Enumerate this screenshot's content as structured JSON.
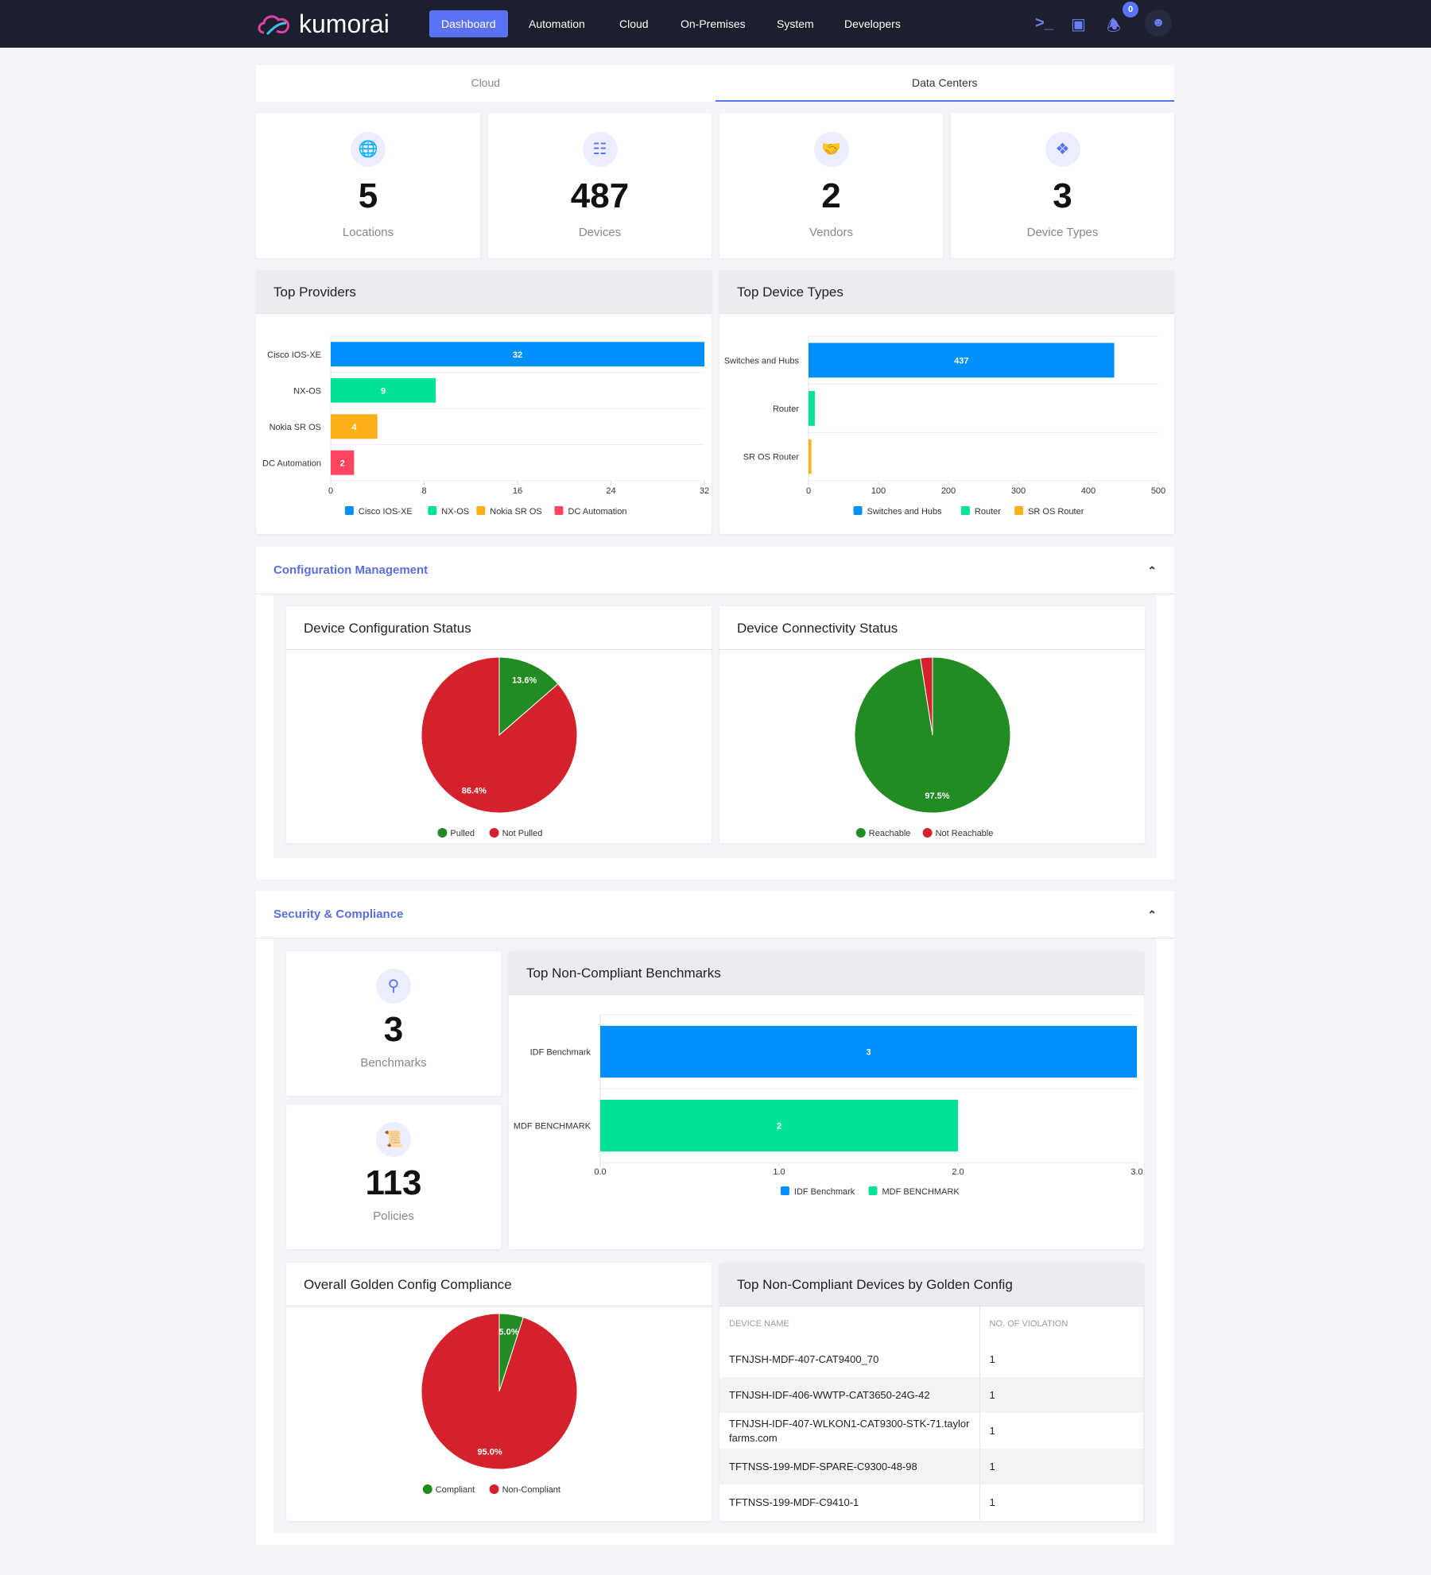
{
  "nav": {
    "brand": "kumorai",
    "items": [
      "Dashboard",
      "Automation",
      "Cloud",
      "On-Premises",
      "System",
      "Developers"
    ],
    "active": "Dashboard",
    "notification_count": "0"
  },
  "tabs": [
    "Cloud",
    "Data Centers"
  ],
  "stats": [
    {
      "value": "5",
      "label": "Locations",
      "icon": "globe-icon"
    },
    {
      "value": "487",
      "label": "Devices",
      "icon": "sitemap-icon"
    },
    {
      "value": "2",
      "label": "Vendors",
      "icon": "handshake-icon"
    },
    {
      "value": "3",
      "label": "Device Types",
      "icon": "cubes-icon"
    }
  ],
  "panels": {
    "top_providers": "Top Providers",
    "top_device_types": "Top Device Types"
  },
  "config": {
    "title": "Configuration Management",
    "config_status": "Device Configuration Status",
    "connectivity_status": "Device Connectivity Status"
  },
  "security": {
    "title": "Security & Compliance",
    "benchmarks": {
      "value": "3",
      "label": "Benchmarks"
    },
    "policies": {
      "value": "113",
      "label": "Policies"
    },
    "benchmarks_chart_title": "Top Non-Compliant Benchmarks",
    "golden_title": "Overall Golden Config Compliance",
    "table_title": "Top Non-Compliant Devices by Golden Config",
    "table": {
      "headers": [
        "DEVICE NAME",
        "NO. OF VIOLATION"
      ],
      "rows": [
        [
          "TFNJSH-MDF-407-CAT9400_70",
          "1"
        ],
        [
          "TFNJSH-IDF-406-WWTP-CAT3650-24G-42",
          "1"
        ],
        [
          "TFNJSH-IDF-407-WLKON1-CAT9300-STK-71.taylorfarms.com",
          "1"
        ],
        [
          "TFTNSS-199-MDF-SPARE-C9300-48-98",
          "1"
        ],
        [
          "TFTNSS-199-MDF-C9410-1",
          "1"
        ]
      ]
    }
  },
  "chart_data": [
    {
      "id": "providers",
      "type": "bar",
      "orientation": "horizontal",
      "categories": [
        "Cisco IOS-XE",
        "NX-OS",
        "Nokia SR OS",
        "DC Automation"
      ],
      "values": [
        32,
        9,
        4,
        2
      ],
      "colors": [
        "#008ffb",
        "#00e396",
        "#feb019",
        "#ff4560"
      ],
      "xlim": [
        0,
        32
      ],
      "ticks": [
        "0",
        "8",
        "16",
        "24",
        "32"
      ],
      "legend": [
        "Cisco IOS-XE",
        "NX-OS",
        "Nokia SR OS",
        "DC Automation"
      ]
    },
    {
      "id": "devtypes",
      "type": "bar",
      "orientation": "horizontal",
      "categories": [
        "Switches and Hubs",
        "Router",
        "SR OS Router"
      ],
      "values": [
        437,
        9,
        4
      ],
      "colors": [
        "#008ffb",
        "#00e396",
        "#feb019"
      ],
      "xlim": [
        0,
        500
      ],
      "ticks": [
        "0",
        "100",
        "200",
        "300",
        "400",
        "500"
      ],
      "legend": [
        "Switches and Hubs",
        "Router",
        "SR OS Router"
      ]
    },
    {
      "id": "benchmarks",
      "type": "bar",
      "orientation": "horizontal",
      "categories": [
        "IDF Benchmark",
        "MDF BENCHMARK"
      ],
      "values": [
        3,
        2
      ],
      "colors": [
        "#008ffb",
        "#00e396"
      ],
      "xlim": [
        0,
        3
      ],
      "ticks": [
        "0.0",
        "1.0",
        "2.0",
        "3.0"
      ],
      "legend": [
        "IDF Benchmark",
        "MDF BENCHMARK"
      ]
    },
    {
      "id": "cfgpie",
      "type": "pie",
      "labels": [
        "Pulled",
        "Not Pulled"
      ],
      "values": [
        13.6,
        86.4
      ],
      "display": [
        "13.6%",
        "86.4%"
      ],
      "colors": [
        "#228b22",
        "#d4212b"
      ]
    },
    {
      "id": "connpie",
      "type": "pie",
      "labels": [
        "Reachable",
        "Not Reachable"
      ],
      "values": [
        97.5,
        2.5
      ],
      "display": [
        "97.5%",
        ""
      ],
      "colors": [
        "#228b22",
        "#d4212b"
      ]
    },
    {
      "id": "goldpie",
      "type": "pie",
      "labels": [
        "Compliant",
        "Non-Compliant"
      ],
      "values": [
        5.0,
        95.0
      ],
      "display": [
        "5.0%",
        "95.0%"
      ],
      "colors": [
        "#228b22",
        "#d4212b"
      ]
    }
  ]
}
